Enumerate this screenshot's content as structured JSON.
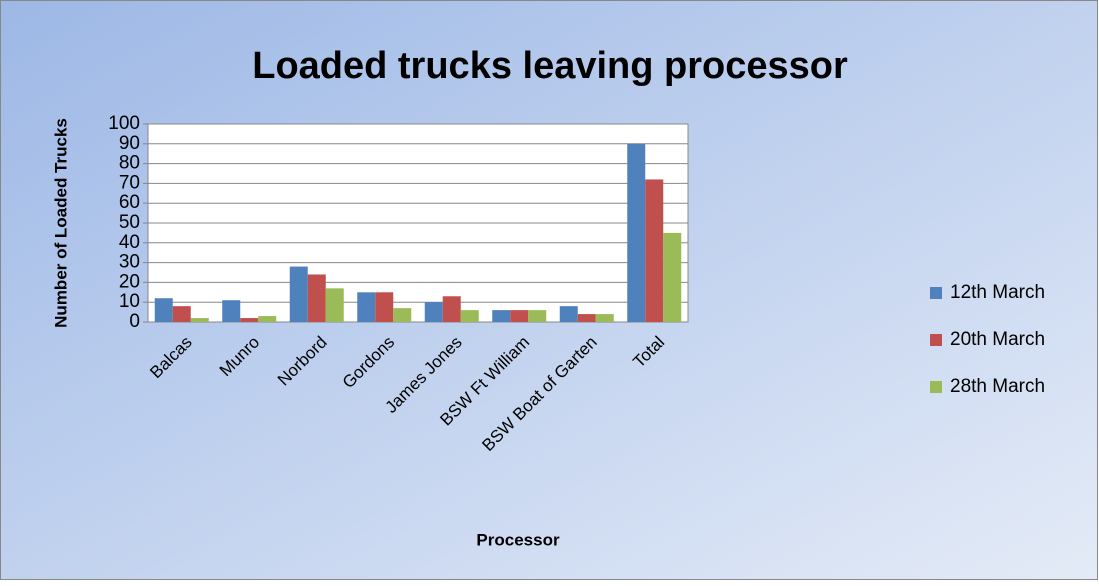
{
  "chart_data": {
    "type": "bar",
    "title": "Loaded trucks leaving processor",
    "x_label": "Processor",
    "y_label": "Number of Loaded Trucks",
    "categories": [
      "Balcas",
      "Munro",
      "Norbord",
      "Gordons",
      "James Jones",
      "BSW Ft William",
      "BSW Boat of Garten",
      "Total"
    ],
    "series": [
      {
        "name": "12th March",
        "color": "#4f81bd",
        "values": [
          12,
          11,
          28,
          15,
          10,
          6,
          8,
          90
        ]
      },
      {
        "name": "20th March",
        "color": "#c0504d",
        "values": [
          8,
          2,
          24,
          15,
          13,
          6,
          4,
          72
        ]
      },
      {
        "name": "28th March",
        "color": "#9bbb59",
        "values": [
          2,
          3,
          17,
          7,
          6,
          6,
          4,
          45
        ]
      }
    ],
    "ylim": [
      0,
      100
    ],
    "yticks": [
      0,
      10,
      20,
      30,
      40,
      50,
      60,
      70,
      80,
      90,
      100
    ],
    "grid": true,
    "legend": "right"
  }
}
